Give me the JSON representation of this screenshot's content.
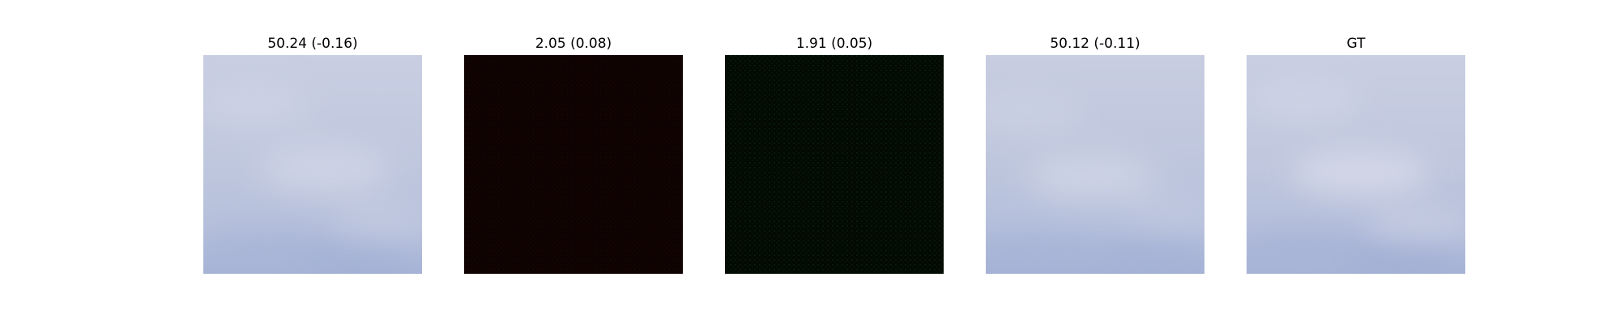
{
  "panels": [
    {
      "title": "50.24 (-0.16)",
      "kind": "sky",
      "variant": "a"
    },
    {
      "title": "2.05 (0.08)",
      "kind": "dark",
      "tint": "#0e0202",
      "texture": "#1c0606"
    },
    {
      "title": "1.91 (0.05)",
      "kind": "dark",
      "tint": "#020a03",
      "texture": "#0b2010"
    },
    {
      "title": "50.12 (-0.11)",
      "kind": "sky",
      "variant": "b"
    },
    {
      "title": "GT",
      "kind": "sky",
      "variant": "c"
    }
  ],
  "colors": {
    "sky_top": "#c8cde1",
    "sky_mid": "#bcc4dc",
    "sky_bottom": "#a8b4d6",
    "cloud": "#d4d8e8"
  }
}
